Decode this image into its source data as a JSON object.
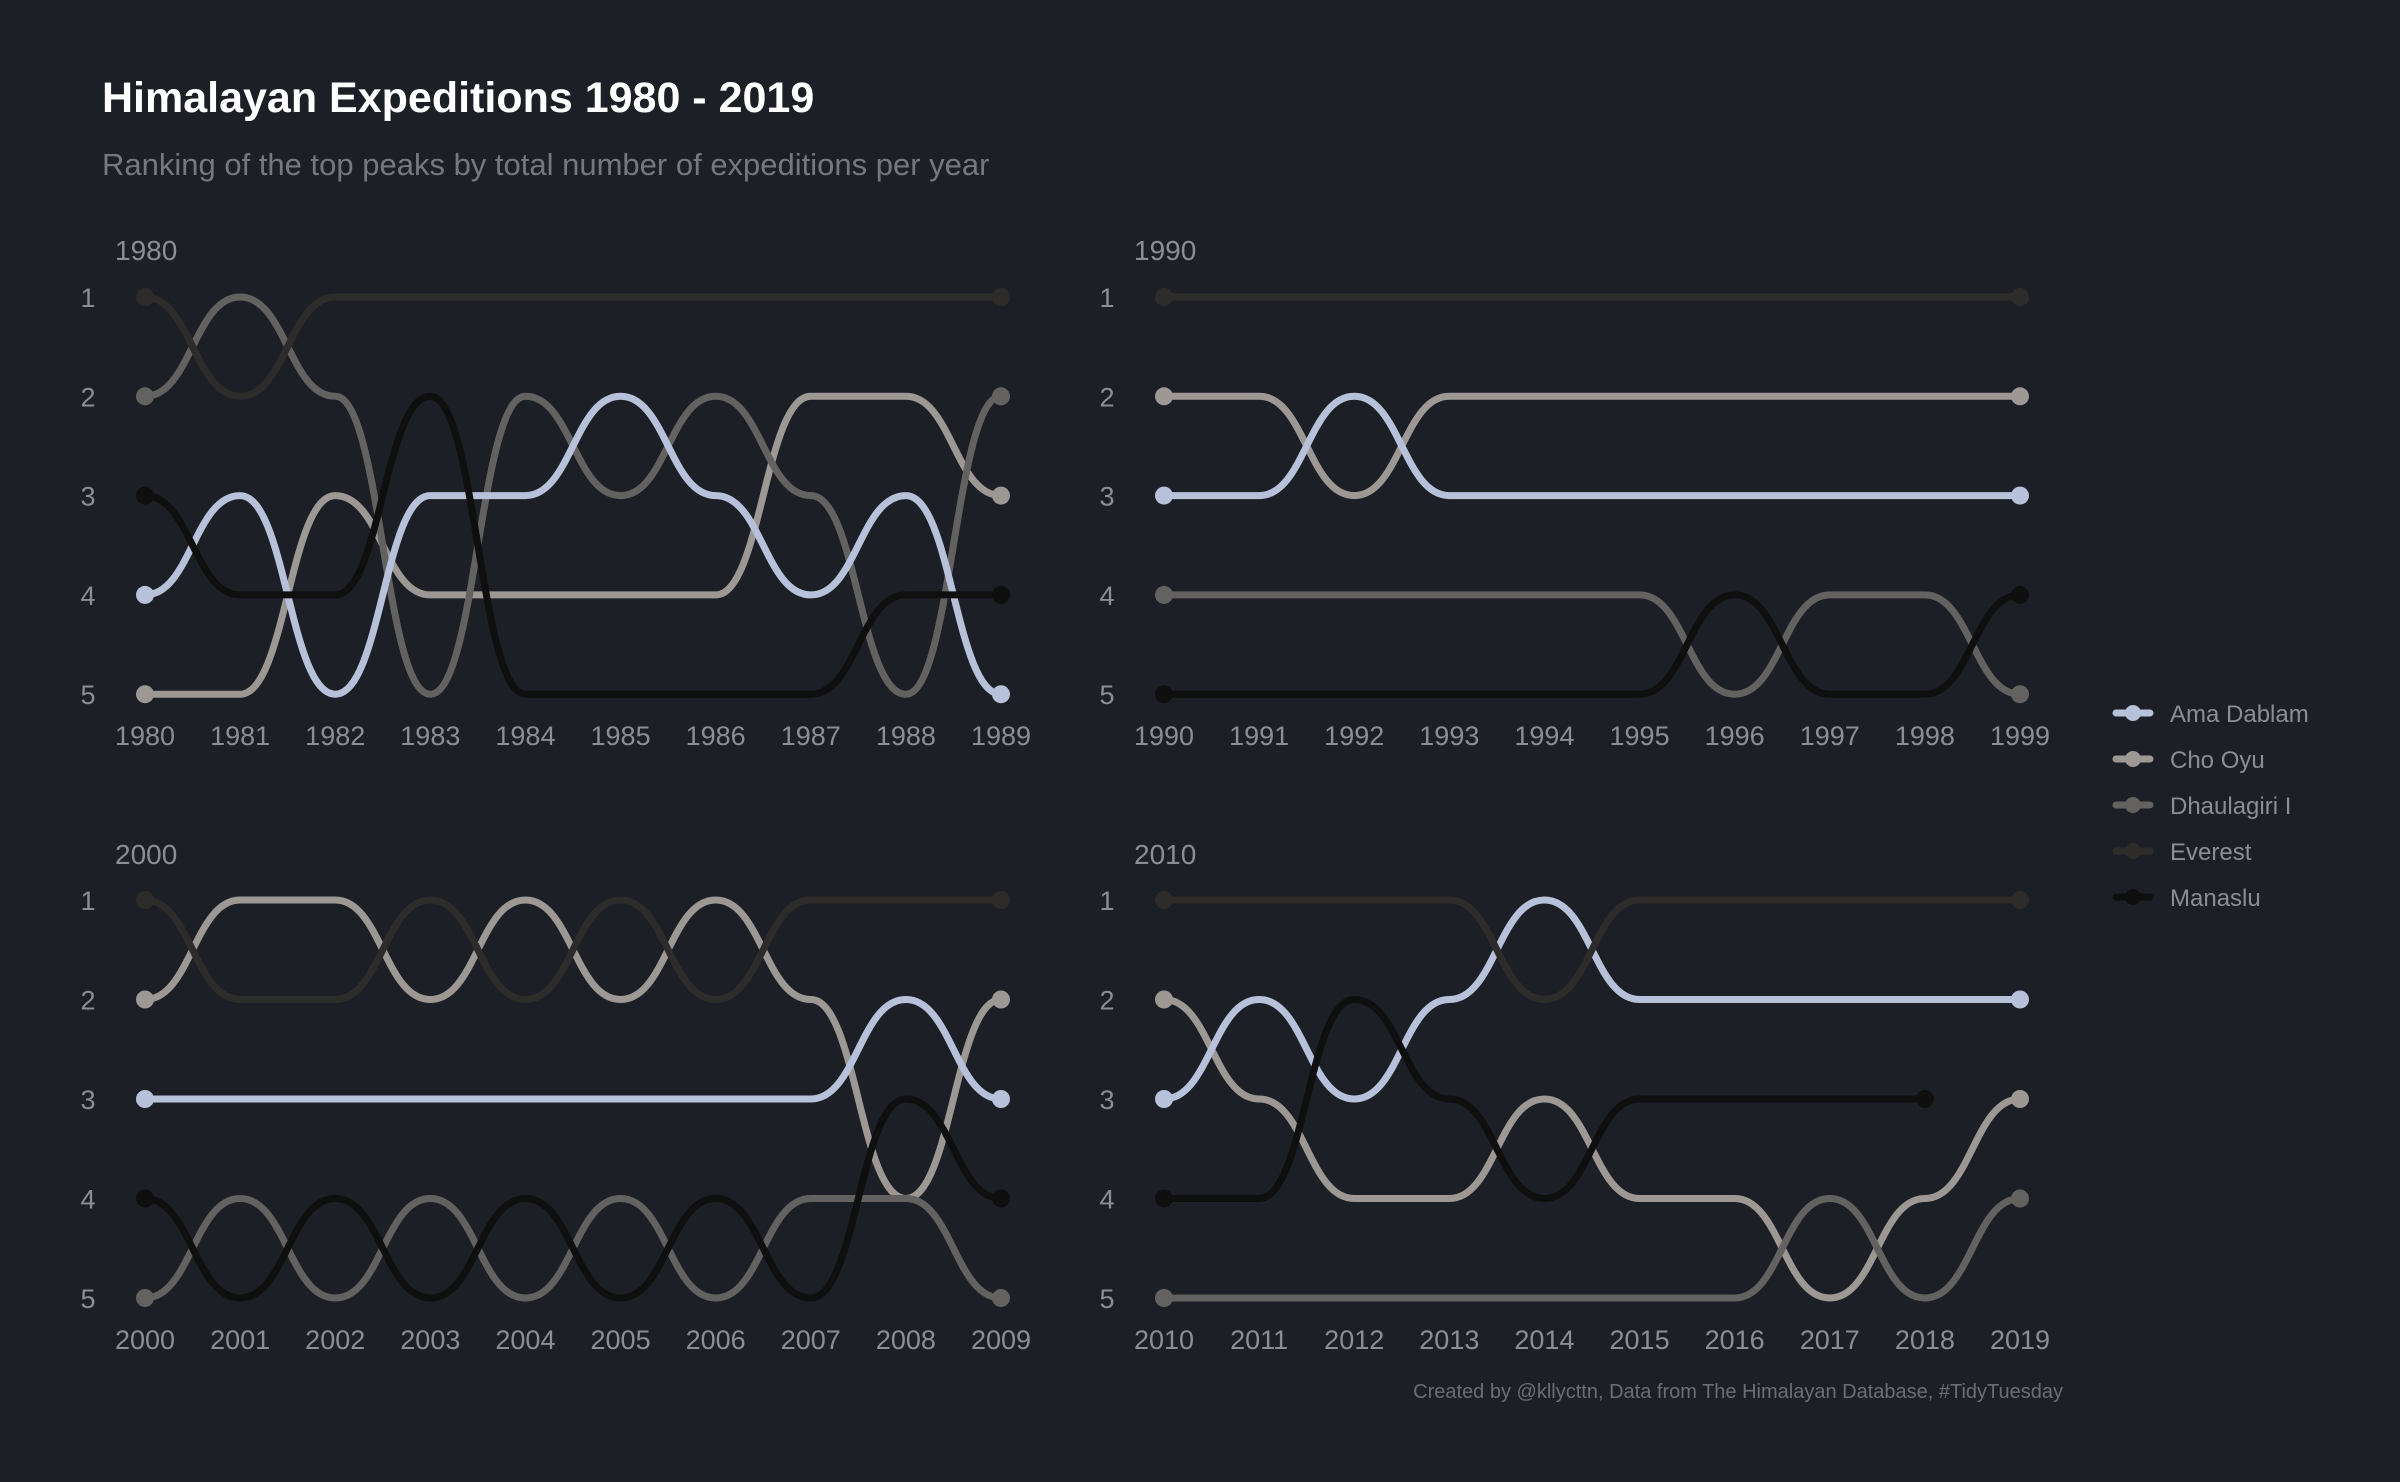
{
  "title": "Himalayan Expeditions 1980 - 2019",
  "subtitle": "Ranking of the top peaks by total number of expeditions per year",
  "caption": "Created by @kllycttn, Data from The Himalayan Database, #TidyTuesday",
  "colors": {
    "background": "#1d1f26",
    "Ama Dablam": "#b7c2da",
    "Cho Oyu": "#9d9894",
    "Dhaulagiri I": "#646260",
    "Everest": "#2e2c2b",
    "Manaslu": "#0f0f0f"
  },
  "chart_data": {
    "type": "line",
    "legend_position": "right",
    "grid": false,
    "y_ranks": [
      "1",
      "2",
      "3",
      "4",
      "5"
    ],
    "series_names": [
      "Ama Dablam",
      "Cho Oyu",
      "Dhaulagiri I",
      "Everest",
      "Manaslu"
    ],
    "panels": [
      {
        "label": "1980",
        "x": [
          "1980",
          "1981",
          "1982",
          "1983",
          "1984",
          "1985",
          "1986",
          "1987",
          "1988",
          "1989"
        ],
        "series": [
          {
            "name": "Ama Dablam",
            "ranks": [
              4,
              3,
              5,
              3,
              3,
              2,
              3,
              4,
              3,
              5
            ]
          },
          {
            "name": "Cho Oyu",
            "ranks": [
              5,
              5,
              3,
              4,
              4,
              4,
              4,
              2,
              2,
              3
            ]
          },
          {
            "name": "Dhaulagiri I",
            "ranks": [
              2,
              1,
              2,
              5,
              2,
              3,
              2,
              3,
              5,
              2
            ]
          },
          {
            "name": "Everest",
            "ranks": [
              1,
              2,
              1,
              1,
              1,
              1,
              1,
              1,
              1,
              1
            ]
          },
          {
            "name": "Manaslu",
            "ranks": [
              3,
              4,
              4,
              2,
              5,
              5,
              5,
              5,
              4,
              4
            ]
          }
        ]
      },
      {
        "label": "1990",
        "x": [
          "1990",
          "1991",
          "1992",
          "1993",
          "1994",
          "1995",
          "1996",
          "1997",
          "1998",
          "1999"
        ],
        "series": [
          {
            "name": "Ama Dablam",
            "ranks": [
              3,
              3,
              2,
              3,
              3,
              3,
              3,
              3,
              3,
              3
            ]
          },
          {
            "name": "Cho Oyu",
            "ranks": [
              2,
              2,
              3,
              2,
              2,
              2,
              2,
              2,
              2,
              2
            ]
          },
          {
            "name": "Dhaulagiri I",
            "ranks": [
              4,
              4,
              4,
              4,
              4,
              4,
              5,
              4,
              4,
              5
            ]
          },
          {
            "name": "Everest",
            "ranks": [
              1,
              1,
              1,
              1,
              1,
              1,
              1,
              1,
              1,
              1
            ]
          },
          {
            "name": "Manaslu",
            "ranks": [
              5,
              5,
              5,
              5,
              5,
              5,
              4,
              5,
              5,
              4
            ]
          }
        ]
      },
      {
        "label": "2000",
        "x": [
          "2000",
          "2001",
          "2002",
          "2003",
          "2004",
          "2005",
          "2006",
          "2007",
          "2008",
          "2009"
        ],
        "series": [
          {
            "name": "Ama Dablam",
            "ranks": [
              3,
              3,
              3,
              3,
              3,
              3,
              3,
              3,
              2,
              3
            ]
          },
          {
            "name": "Cho Oyu",
            "ranks": [
              2,
              1,
              1,
              2,
              1,
              2,
              1,
              2,
              4,
              2
            ]
          },
          {
            "name": "Dhaulagiri I",
            "ranks": [
              5,
              4,
              5,
              4,
              5,
              4,
              5,
              4,
              4,
              5
            ]
          },
          {
            "name": "Everest",
            "ranks": [
              1,
              2,
              2,
              1,
              2,
              1,
              2,
              1,
              1,
              1
            ]
          },
          {
            "name": "Manaslu",
            "ranks": [
              4,
              5,
              4,
              5,
              4,
              5,
              4,
              5,
              3,
              4
            ]
          }
        ]
      },
      {
        "label": "2010",
        "x": [
          "2010",
          "2011",
          "2012",
          "2013",
          "2014",
          "2015",
          "2016",
          "2017",
          "2018",
          "2019"
        ],
        "series": [
          {
            "name": "Ama Dablam",
            "ranks": [
              3,
              2,
              3,
              2,
              1,
              2,
              2,
              2,
              2,
              2
            ]
          },
          {
            "name": "Cho Oyu",
            "ranks": [
              2,
              3,
              4,
              4,
              3,
              4,
              4,
              5,
              4,
              3
            ]
          },
          {
            "name": "Dhaulagiri I",
            "ranks": [
              5,
              5,
              5,
              5,
              5,
              5,
              5,
              4,
              5,
              4
            ]
          },
          {
            "name": "Everest",
            "ranks": [
              1,
              1,
              1,
              1,
              2,
              1,
              1,
              1,
              1,
              1
            ]
          },
          {
            "name": "Manaslu",
            "ranks": [
              4,
              4,
              2,
              3,
              4,
              3,
              3,
              3,
              3,
              null
            ]
          }
        ]
      }
    ]
  }
}
